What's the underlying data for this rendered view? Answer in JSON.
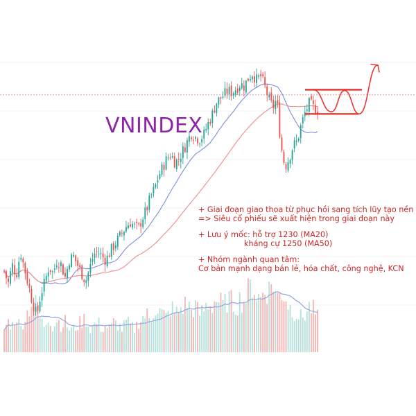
{
  "chart_data": {
    "type": "candlestick",
    "title": "VNINDEX",
    "colors": {
      "up": "#26a69a",
      "down": "#ef5350",
      "ma_fast": "#7b8de0",
      "ma_slow": "#f08a8a",
      "annotation": "#c62828",
      "title": "#8e24aa",
      "reference_line": "#ef9a9a",
      "volume_ma": "#8fa6e0"
    },
    "close_path": [
      1035,
      1005,
      1050,
      1025,
      1080,
      1040,
      1000,
      960,
      930,
      980,
      1010,
      1045,
      1030,
      1060,
      1050,
      1020,
      1060,
      1070,
      1050,
      1030,
      1010,
      1040,
      1075,
      1080,
      1070,
      1060,
      1080,
      1095,
      1110,
      1125,
      1140,
      1150,
      1140,
      1135,
      1160,
      1180,
      1210,
      1230,
      1260,
      1280,
      1300,
      1310,
      1290,
      1300,
      1320,
      1340,
      1360,
      1350,
      1345,
      1355,
      1380,
      1400,
      1430,
      1440,
      1450,
      1460,
      1455,
      1465,
      1475,
      1470,
      1490,
      1500,
      1485,
      1495,
      1470,
      1440,
      1420,
      1440,
      1330,
      1280,
      1300,
      1330,
      1340,
      1380,
      1410,
      1430,
      1420,
      1415
    ],
    "volume_levels": [
      0.3,
      0.4,
      0.35,
      0.5,
      0.3,
      0.45,
      0.55,
      0.7,
      0.6,
      0.4,
      0.35,
      0.5,
      0.3,
      0.45,
      0.35,
      0.4,
      0.3,
      0.3,
      0.35,
      0.4,
      0.45,
      0.3,
      0.35,
      0.4,
      0.3,
      0.35,
      0.3,
      0.4,
      0.35,
      0.3,
      0.4,
      0.35,
      0.3,
      0.4,
      0.45,
      0.5,
      0.4,
      0.6,
      0.55,
      0.5,
      0.45,
      0.6,
      0.5,
      0.55,
      0.6,
      0.65,
      0.55,
      0.6,
      0.5,
      0.55,
      0.65,
      0.6,
      0.7,
      0.65,
      0.6,
      0.7,
      0.65,
      0.6,
      0.7,
      0.65,
      0.8,
      0.9,
      0.75,
      0.7,
      0.85,
      0.8,
      0.95,
      0.7,
      0.8,
      0.75,
      0.6,
      0.55,
      0.5,
      0.45,
      0.5,
      0.6,
      0.55,
      0.45
    ],
    "reference_level": 1450,
    "range_box": {
      "low": 1405,
      "high": 1462
    },
    "projected_path": [
      1462,
      1410,
      1460,
      1405,
      1520
    ],
    "annotations": [
      "+ Giai đoạn giao thoa từ phục hồi sang tích lũy tạo nền",
      "=> Siêu cổ phiếu sẽ xuất hiện trong giai đoạn này",
      "+ Lưu ý mốc: hỗ trợ 1230 (MA20)",
      "kháng cự 1250 (MA50)",
      "+ Nhóm ngành quan tâm:",
      "Cơ bản mạnh dạng bán lẻ, hóa chất, công nghệ, KCN"
    ]
  }
}
